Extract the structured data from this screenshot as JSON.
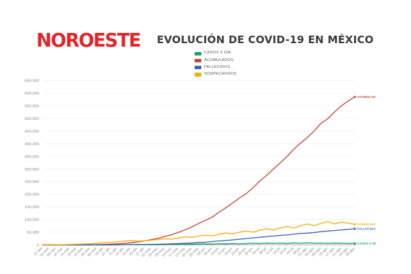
{
  "page": {
    "background": "#ffffff"
  },
  "header": {
    "logo_text": "NOROESTE",
    "logo_color": "#e42529",
    "title_color": "#3a3a3a"
  },
  "chart_data": {
    "type": "line",
    "title": "EVOLUCIÓN DE COVID-19 EN MÉXICO",
    "xlabel": "",
    "ylabel": "",
    "ylim": [
      0,
      650000
    ],
    "grid": "horizontal",
    "legend_position": "top-center",
    "axis_label_color": "#888888",
    "gridline_color": "#efefef",
    "y_ticks": [
      0,
      50000,
      100000,
      150000,
      200000,
      250000,
      300000,
      350000,
      400000,
      450000,
      500000,
      550000,
      600000,
      650000
    ],
    "y_tick_labels": [
      "0",
      "50,000",
      "100,000",
      "150,000",
      "200,000",
      "250,000",
      "300,000",
      "350,000",
      "400,000",
      "450,000",
      "500,000",
      "550,000",
      "600,000",
      "650,000"
    ],
    "x_tick_labels": [
      "27-feb",
      "02-mar",
      "06-mar",
      "10-mar",
      "14-mar",
      "18-mar",
      "22-mar",
      "26-mar",
      "30-mar",
      "03-abr",
      "07-abr",
      "11-abr",
      "15-abr",
      "19-abr",
      "23-abr",
      "27-abr",
      "01-may",
      "05-may",
      "09-may",
      "13-may",
      "17-may",
      "21-may",
      "25-may",
      "29-may",
      "02-jun",
      "06-jun",
      "10-jun",
      "14-jun",
      "18-jun",
      "22-jun",
      "26-jun",
      "30-jun",
      "04-jul",
      "08-jul",
      "12-jul",
      "16-jul",
      "20-jul",
      "24-jul",
      "28-jul",
      "01-ago",
      "05-ago",
      "09-ago",
      "13-ago",
      "17-ago",
      "21-ago",
      "25-ago",
      "29-ago"
    ],
    "series": [
      {
        "name": "CASOS X DÍA",
        "end_label": "CASOS X DÍ",
        "color": "#17a164",
        "values": [
          1,
          2,
          1,
          2,
          10,
          30,
          65,
          110,
          145,
          190,
          340,
          375,
          450,
          650,
          950,
          850,
          1300,
          1450,
          1900,
          1800,
          2400,
          2950,
          2750,
          3200,
          3900,
          3500,
          4800,
          4100,
          5300,
          4600,
          5400,
          6300,
          5500,
          6900,
          6000,
          7100,
          5300,
          7500,
          6100,
          7800,
          6200,
          7000,
          5900,
          7100,
          6500,
          5800,
          5700
        ]
      },
      {
        "name": "ACUMULADOS",
        "end_label": "ACUMULAD",
        "color": "#c8473b",
        "values": [
          1,
          5,
          6,
          7,
          41,
          118,
          316,
          585,
          1094,
          1688,
          2785,
          4219,
          5847,
          8261,
          11633,
          15529,
          20739,
          26025,
          33460,
          40186,
          49219,
          59567,
          71105,
          84627,
          97326,
          110026,
          129184,
          146837,
          165455,
          185122,
          202951,
          226089,
          252165,
          275003,
          299750,
          324041,
          349396,
          378285,
          402697,
          424637,
          449961,
          480278,
          498380,
          525733,
          549734,
          568621,
          585738
        ]
      },
      {
        "name": "FALLECIDOS",
        "end_label": "FALLECIDO",
        "color": "#3e68b2",
        "values": [
          0,
          0,
          0,
          0,
          0,
          1,
          3,
          8,
          28,
          60,
          141,
          273,
          449,
          686,
          1069,
          1434,
          1972,
          2507,
          3353,
          4220,
          5177,
          6510,
          7633,
          9415,
          10637,
          13170,
          15357,
          17141,
          19747,
          22584,
          25060,
          27769,
          30366,
          32796,
          35006,
          37574,
          39485,
          42645,
          44876,
          46688,
          48869,
          52298,
          54666,
          56757,
          59106,
          61450,
          64158
        ]
      },
      {
        "name": "SOSPECHOSOS",
        "end_label": "SOSPECHO",
        "color": "#f1b10f",
        "values": [
          100,
          300,
          500,
          900,
          1500,
          2500,
          3800,
          5000,
          6500,
          8000,
          10000,
          12500,
          15000,
          17000,
          14500,
          16000,
          18500,
          21000,
          24500,
          22500,
          27000,
          32000,
          29500,
          35000,
          38500,
          35500,
          42000,
          47000,
          43500,
          50000,
          55000,
          50500,
          58000,
          64000,
          59000,
          67000,
          73000,
          66500,
          76000,
          83000,
          75500,
          85000,
          92000,
          83000,
          90000,
          86000,
          81500
        ]
      }
    ]
  }
}
